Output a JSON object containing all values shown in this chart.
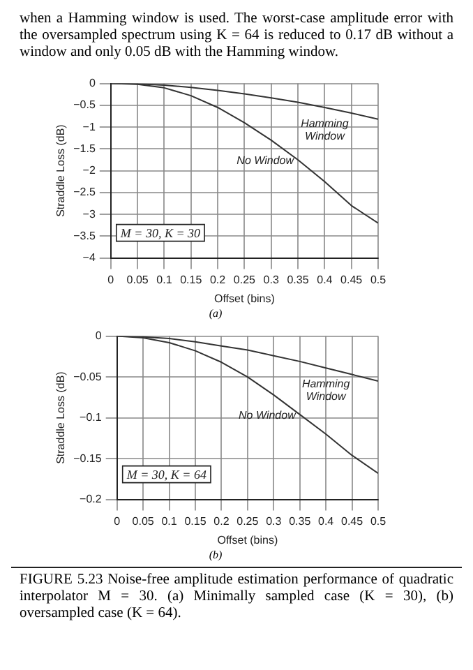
{
  "chart_data": [
    {
      "type": "line",
      "xlabel": "Offset (bins)",
      "ylabel": "Straddle Loss (dB)",
      "x": [
        0,
        0.05,
        0.1,
        0.15,
        0.2,
        0.25,
        0.3,
        0.35,
        0.4,
        0.45,
        0.5
      ],
      "series": [
        {
          "name": "Hamming Window",
          "color": "#333333",
          "values": [
            0,
            -0.01,
            -0.04,
            -0.09,
            -0.16,
            -0.24,
            -0.33,
            -0.43,
            -0.55,
            -0.68,
            -0.82
          ]
        },
        {
          "name": "No Window",
          "color": "#333333",
          "values": [
            0,
            -0.02,
            -0.1,
            -0.28,
            -0.55,
            -0.9,
            -1.3,
            -1.75,
            -2.25,
            -2.8,
            -3.2
          ]
        }
      ],
      "xlim": [
        0,
        0.5
      ],
      "xticks": [
        0,
        0.05,
        0.1,
        0.15,
        0.2,
        0.25,
        0.3,
        0.35,
        0.4,
        0.45,
        0.5
      ],
      "ylim": [
        -4,
        0
      ],
      "yticks": [
        -4,
        -3.5,
        -3,
        -2.5,
        -2,
        -1.5,
        -1,
        -0.5,
        0
      ],
      "grid": true,
      "legend": false,
      "marker": "none",
      "line_style": "solid",
      "annotations": [
        "M = 30, K = 30",
        "(a)",
        "when a Hamming window is used. The worst-case amplitude error with the oversampled spectrum using K = 64 is reduced to 0.17 dB without a window and only 0.05 dB with the Hamming window."
      ]
    },
    {
      "type": "line",
      "xlabel": "Offset (bins)",
      "ylabel": "Straddle Loss (dB)",
      "x": [
        0,
        0.05,
        0.1,
        0.15,
        0.2,
        0.25,
        0.3,
        0.35,
        0.4,
        0.45,
        0.5
      ],
      "series": [
        {
          "name": "Hamming Window",
          "color": "#333333",
          "values": [
            0,
            -0.001,
            -0.003,
            -0.007,
            -0.012,
            -0.017,
            -0.024,
            -0.031,
            -0.039,
            -0.047,
            -0.055
          ]
        },
        {
          "name": "No Window",
          "color": "#333333",
          "values": [
            0,
            -0.002,
            -0.008,
            -0.018,
            -0.032,
            -0.05,
            -0.072,
            -0.096,
            -0.12,
            -0.146,
            -0.168
          ]
        }
      ],
      "xlim": [
        0,
        0.5
      ],
      "xticks": [
        0,
        0.05,
        0.1,
        0.15,
        0.2,
        0.25,
        0.3,
        0.35,
        0.4,
        0.45,
        0.5
      ],
      "ylim": [
        -0.2,
        0
      ],
      "yticks": [
        -0.2,
        -0.15,
        -0.1,
        -0.05,
        0
      ],
      "grid": true,
      "legend": false,
      "marker": "none",
      "line_style": "solid",
      "annotations": [
        "M = 30, K = 64",
        "(b)",
        "FIGURE 5.23 Noise-free amplitude estimation performance of quadratic interpolator M = 30. (a) Minimally sampled case (K = 30), (b) oversampled case (K = 64)."
      ]
    }
  ]
}
